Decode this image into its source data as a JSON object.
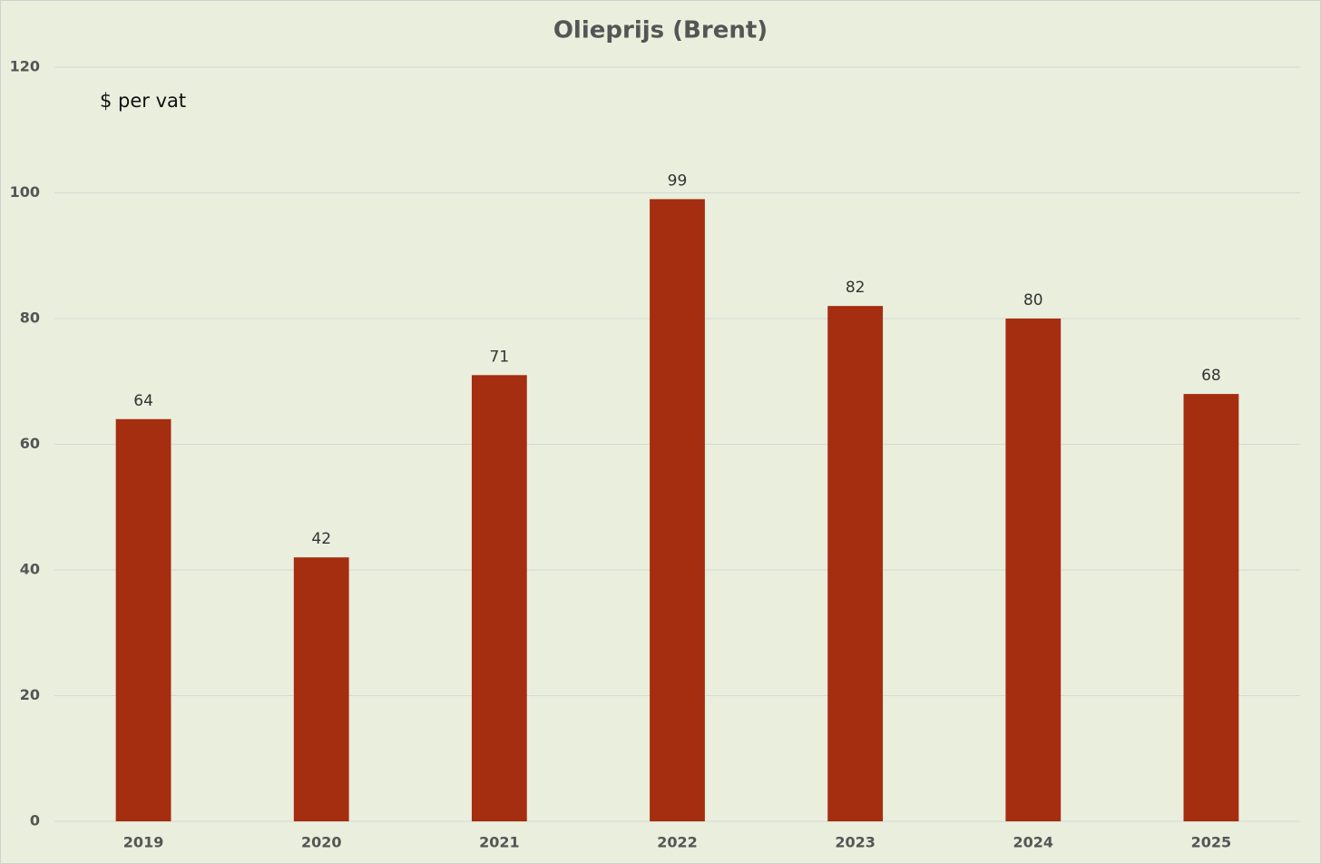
{
  "chart_data": {
    "type": "bar",
    "title": "Olieprijs (Brent)",
    "annotation": "$ per vat",
    "categories": [
      "2019",
      "2020",
      "2021",
      "2022",
      "2023",
      "2024",
      "2025"
    ],
    "values": [
      64,
      42,
      71,
      99,
      82,
      80,
      68
    ],
    "color": "#a52d10",
    "ylim": [
      0,
      120
    ],
    "yticks": [
      0,
      20,
      40,
      60,
      80,
      100,
      120
    ],
    "grid": true,
    "data_labels": true
  }
}
